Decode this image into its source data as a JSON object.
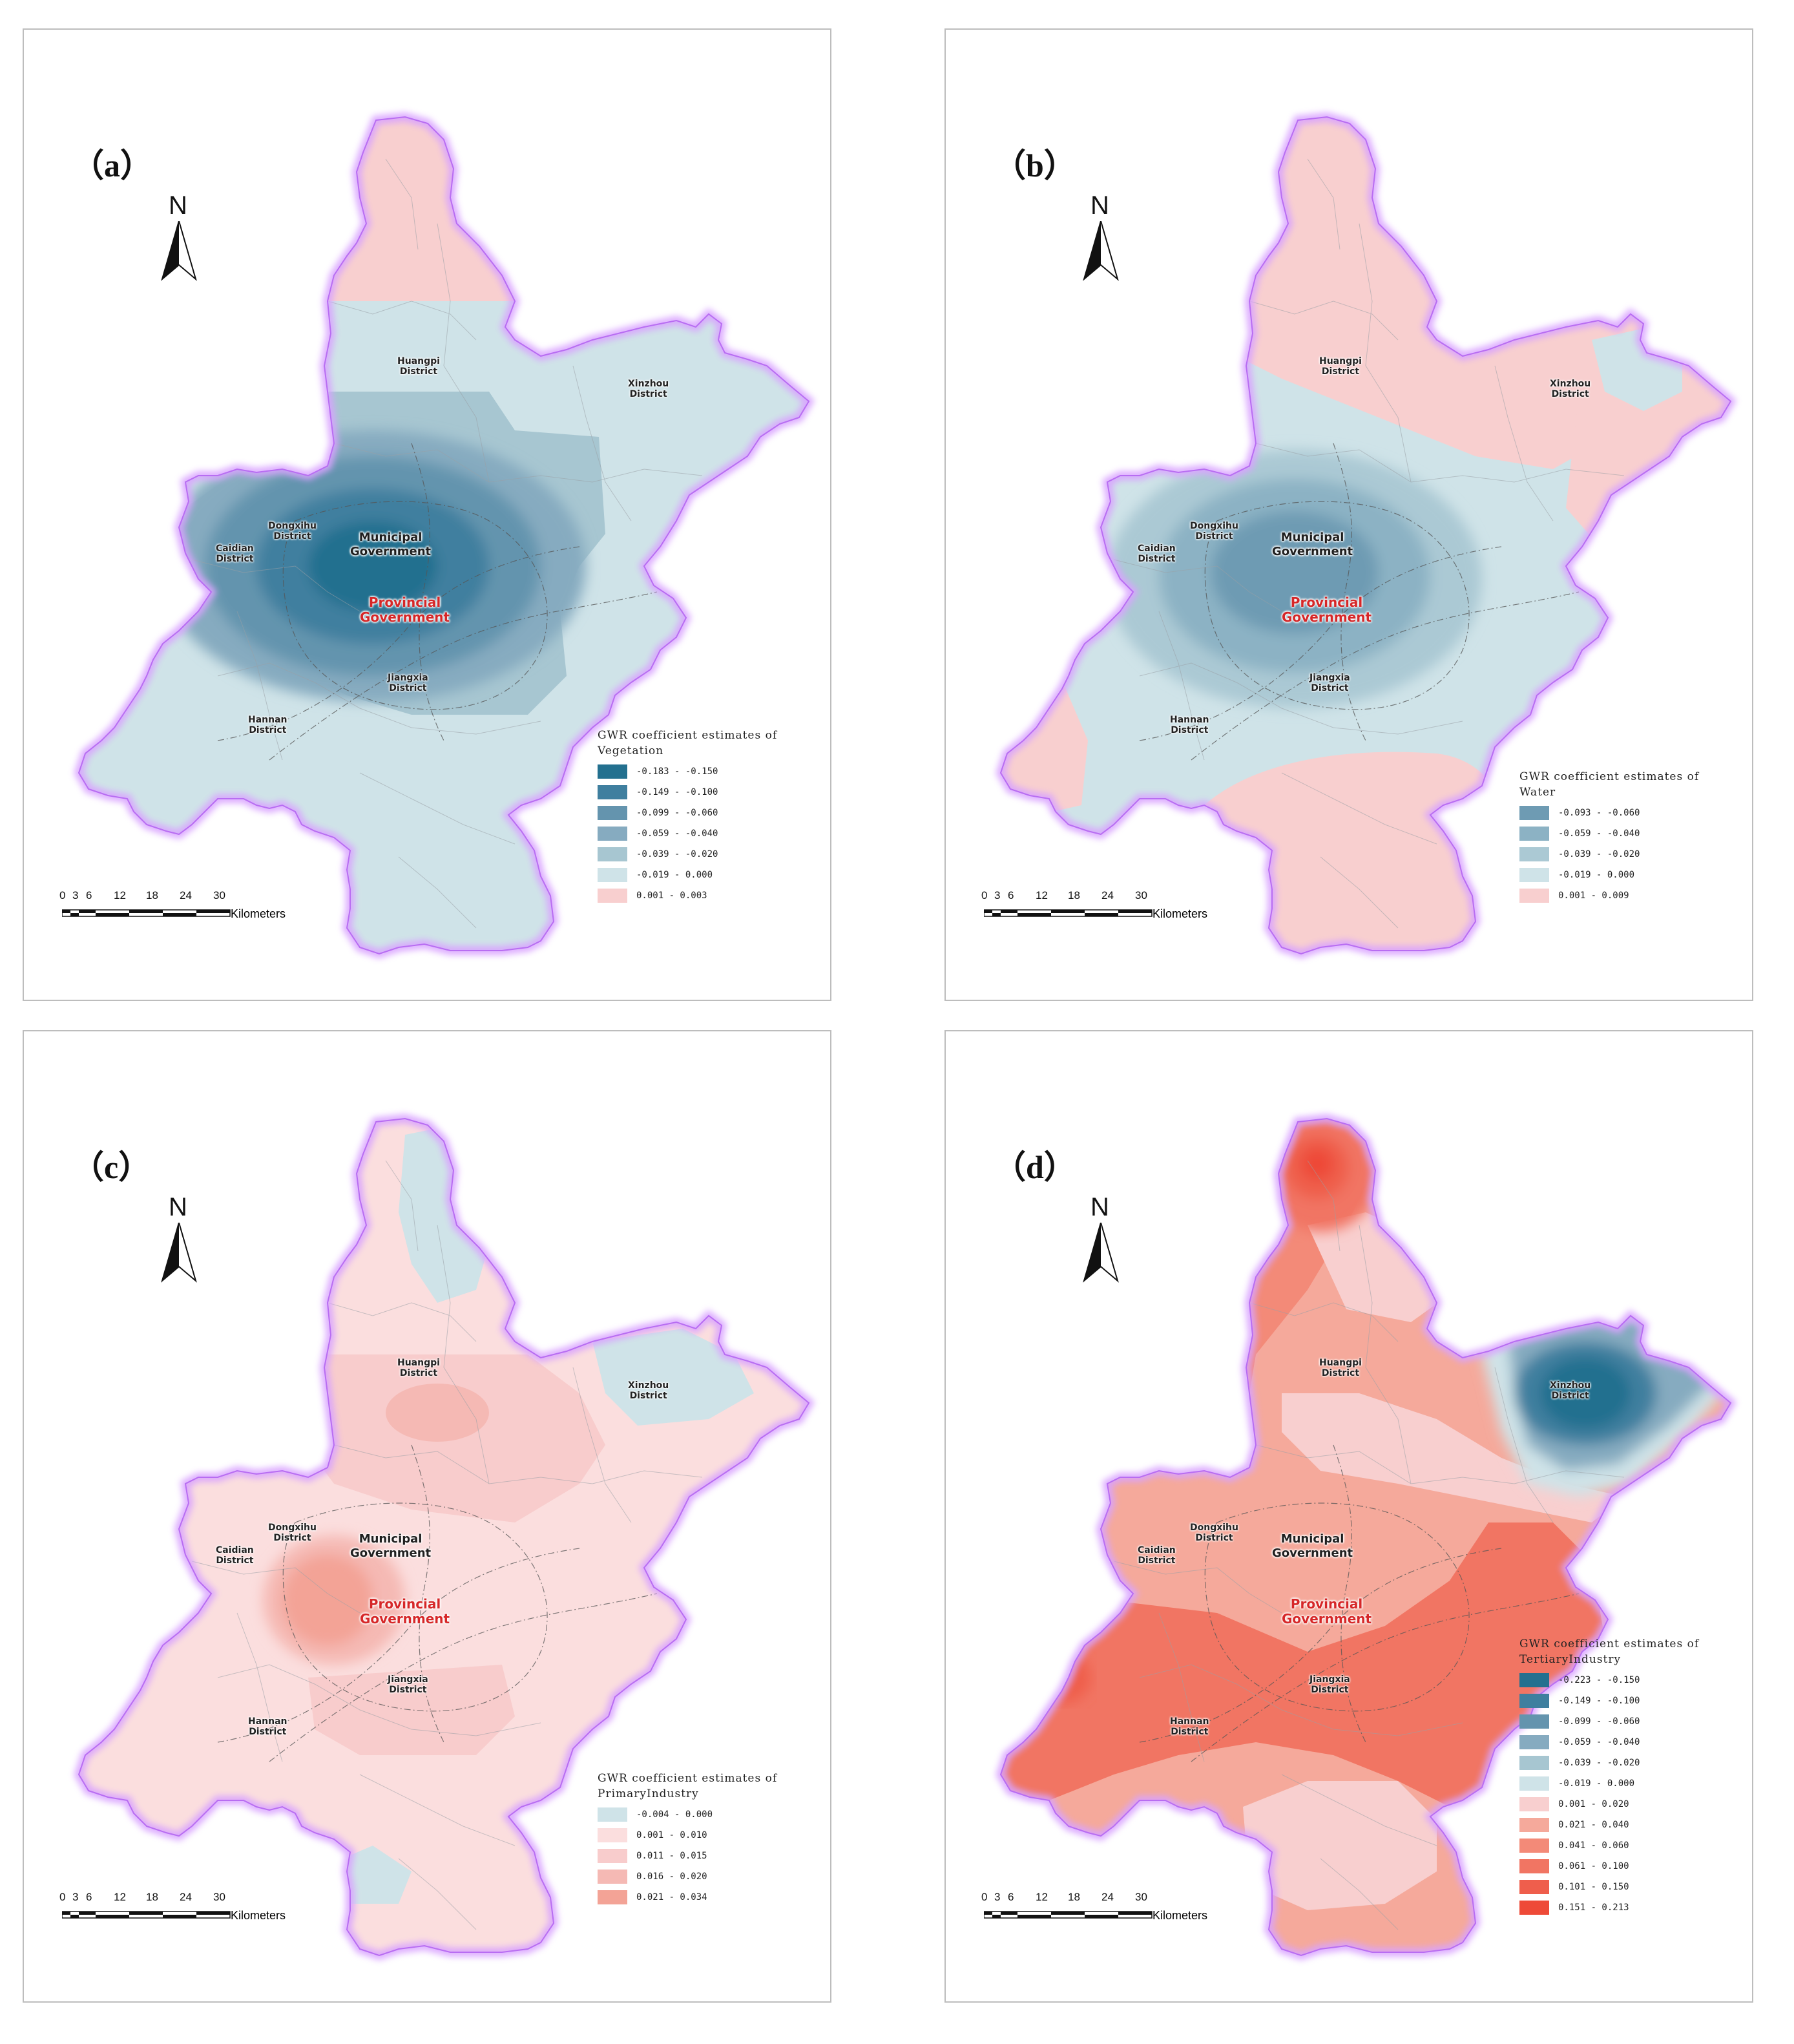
{
  "places": {
    "huangpi": "Huangpi\nDistrict",
    "xinzhou": "Xinzhou\nDistrict",
    "dongxihu": "Dongxihu\nDistrict",
    "caidian": "Caidian\nDistrict",
    "jiangxia": "Jiangxia\nDistrict",
    "hannan": "Hannan\nDistrict",
    "municipal": "Municipal\nGovernment",
    "provincial": "Provincial\nGovernment"
  },
  "scale_bar": {
    "ticks": [
      "0",
      "3",
      "6",
      "12",
      "18",
      "24",
      "30"
    ],
    "unit": "Kilometers"
  },
  "north_label": "N",
  "colors": {
    "boundary_glow": "#cc88ff",
    "pink_light": "#f8cfcf",
    "blue_light": "#cfe3e8"
  },
  "panels": [
    {
      "label": "（a）",
      "legend_title_1": "GWR coefficient estimates of",
      "legend_title_2": "Vegetation",
      "classes": [
        {
          "range": "-0.183 - -0.150",
          "color": "#23708f"
        },
        {
          "range": "-0.149 - -0.100",
          "color": "#3f7f9f"
        },
        {
          "range": "-0.099 - -0.060",
          "color": "#6494ae"
        },
        {
          "range": "-0.059 - -0.040",
          "color": "#86abc0"
        },
        {
          "range": "-0.039 - -0.020",
          "color": "#a7c6d1"
        },
        {
          "range": "-0.019 - 0.000",
          "color": "#cfe3e8"
        },
        {
          "range": "0.001 - 0.003",
          "color": "#f8cfcf"
        }
      ]
    },
    {
      "label": "（b）",
      "legend_title_1": "GWR coefficient estimates of",
      "legend_title_2": "Water",
      "classes": [
        {
          "range": "-0.093 - -0.060",
          "color": "#6e9bb3"
        },
        {
          "range": "-0.059 - -0.040",
          "color": "#8cb2c4"
        },
        {
          "range": "-0.039 - -0.020",
          "color": "#abc9d4"
        },
        {
          "range": "-0.019 - 0.000",
          "color": "#cfe3e8"
        },
        {
          "range": "0.001 - 0.009",
          "color": "#f8cfcf"
        }
      ]
    },
    {
      "label": "（c）",
      "legend_title_1": "GWR coefficient estimates of",
      "legend_title_2": "PrimaryIndustry",
      "classes": [
        {
          "range": "-0.004 - 0.000",
          "color": "#cfe3e8"
        },
        {
          "range": "0.001 - 0.010",
          "color": "#fbdede"
        },
        {
          "range": "0.011 - 0.015",
          "color": "#f8cccc"
        },
        {
          "range": "0.016 - 0.020",
          "color": "#f5b9b4"
        },
        {
          "range": "0.021 - 0.034",
          "color": "#f3a396"
        }
      ]
    },
    {
      "label": "（d）",
      "legend_title_1": "GWR coefficient estimates of",
      "legend_title_2": "TertiaryIndustry",
      "classes": [
        {
          "range": "-0.223 - -0.150",
          "color": "#23708f"
        },
        {
          "range": "-0.149 - -0.100",
          "color": "#3f7f9f"
        },
        {
          "range": "-0.099 - -0.060",
          "color": "#6494ae"
        },
        {
          "range": "-0.059 - -0.040",
          "color": "#86abc0"
        },
        {
          "range": "-0.039 - -0.020",
          "color": "#a7c6d1"
        },
        {
          "range": "-0.019 - 0.000",
          "color": "#cfe3e8"
        },
        {
          "range": "0.001 - 0.020",
          "color": "#f8cfcf"
        },
        {
          "range": "0.021 - 0.040",
          "color": "#f5a99b"
        },
        {
          "range": "0.041 - 0.060",
          "color": "#f38a78"
        },
        {
          "range": "0.061 - 0.100",
          "color": "#f17563"
        },
        {
          "range": "0.101 - 0.150",
          "color": "#ef5e4c"
        },
        {
          "range": "0.151 - 0.213",
          "color": "#ee4a38"
        }
      ]
    }
  ]
}
